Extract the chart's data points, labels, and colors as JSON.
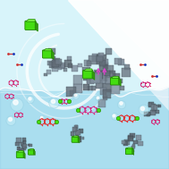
{
  "bg_top": "#d8f4fa",
  "bg_bottom": "#a8dff0",
  "water_top": "#8ecce8",
  "water_mid": "#78bedd",
  "light_color": "#ffffff",
  "bubble_face": "#c8eef8",
  "bubble_edge": "#90cce0",
  "green_color": "#44dd11",
  "green_edge": "#228800",
  "gray_face": "#8899aa",
  "gray_edge": "#556677",
  "gray_face2": "#aabbcc",
  "mol_red": "#dd2222",
  "mol_pink": "#cc44aa",
  "mol_green": "#33bb33",
  "mol_oxy": "#ee3333",
  "mol_nit": "#2222cc",
  "swirl_color": "#c8eef8",
  "figsize": [
    1.89,
    1.89
  ],
  "dpi": 100
}
